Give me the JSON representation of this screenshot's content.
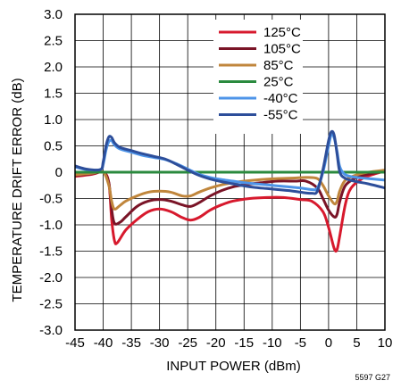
{
  "chart_data": {
    "type": "line",
    "title": "",
    "xlabel": "INPUT POWER (dBm)",
    "ylabel": "TEMPERATURE DRIFT ERROR (dB)",
    "xlim": [
      -45,
      10
    ],
    "ylim": [
      -3.0,
      3.0
    ],
    "xticks": [
      -45,
      -40,
      -35,
      -30,
      -25,
      -20,
      -15,
      -10,
      -5,
      0,
      5,
      10
    ],
    "yticks": [
      3.0,
      2.5,
      2.0,
      1.5,
      1.0,
      0.5,
      0,
      -0.5,
      -1.0,
      -1.5,
      -2.0,
      -2.5,
      -3.0
    ],
    "xtick_labels": [
      "-45",
      "-40",
      "-35",
      "-30",
      "-25",
      "-20",
      "-15",
      "-10",
      "-5",
      "0",
      "5",
      "10"
    ],
    "ytick_labels": [
      "3.0",
      "2.5",
      "2.0",
      "1.5",
      "1.0",
      "0.5",
      "0",
      "-0.5",
      "-1.0",
      "-1.5",
      "-2.0",
      "-2.5",
      "-3.0"
    ],
    "grid": true,
    "legend_position": "top-right",
    "figure_id": "5597 G27",
    "series": [
      {
        "name": "125°C",
        "color": "#d7192d",
        "points": [
          [
            -45,
            -0.08
          ],
          [
            -42,
            -0.04
          ],
          [
            -40,
            0
          ],
          [
            -39,
            -0.2
          ],
          [
            -38.5,
            -0.9
          ],
          [
            -38,
            -1.3
          ],
          [
            -37.5,
            -1.34
          ],
          [
            -36,
            -1.1
          ],
          [
            -34,
            -0.9
          ],
          [
            -32,
            -0.75
          ],
          [
            -30,
            -0.7
          ],
          [
            -28,
            -0.75
          ],
          [
            -26,
            -0.86
          ],
          [
            -24.5,
            -0.91
          ],
          [
            -23,
            -0.86
          ],
          [
            -21,
            -0.72
          ],
          [
            -19,
            -0.62
          ],
          [
            -17,
            -0.55
          ],
          [
            -14,
            -0.5
          ],
          [
            -11,
            -0.48
          ],
          [
            -8,
            -0.48
          ],
          [
            -5,
            -0.52
          ],
          [
            -3,
            -0.55
          ],
          [
            -1,
            -0.75
          ],
          [
            0,
            -1.05
          ],
          [
            1,
            -1.45
          ],
          [
            1.5,
            -1.47
          ],
          [
            2,
            -1.2
          ],
          [
            3,
            -0.6
          ],
          [
            4,
            -0.3
          ],
          [
            6,
            -0.12
          ],
          [
            8,
            -0.04
          ],
          [
            10,
            0.02
          ]
        ]
      },
      {
        "name": "105°C",
        "color": "#7a1427",
        "points": [
          [
            -45,
            -0.06
          ],
          [
            -42,
            -0.03
          ],
          [
            -40,
            0
          ],
          [
            -39,
            -0.2
          ],
          [
            -38.5,
            -0.7
          ],
          [
            -38,
            -0.97
          ],
          [
            -37,
            -0.95
          ],
          [
            -36,
            -0.85
          ],
          [
            -34,
            -0.65
          ],
          [
            -32,
            -0.55
          ],
          [
            -30,
            -0.52
          ],
          [
            -28,
            -0.55
          ],
          [
            -26,
            -0.62
          ],
          [
            -24.5,
            -0.65
          ],
          [
            -23,
            -0.58
          ],
          [
            -21,
            -0.45
          ],
          [
            -19,
            -0.35
          ],
          [
            -17,
            -0.28
          ],
          [
            -15,
            -0.24
          ],
          [
            -12,
            -0.2
          ],
          [
            -9,
            -0.17
          ],
          [
            -6,
            -0.17
          ],
          [
            -4,
            -0.17
          ],
          [
            -2,
            -0.3
          ],
          [
            -1,
            -0.5
          ],
          [
            0,
            -0.72
          ],
          [
            1,
            -0.85
          ],
          [
            1.5,
            -0.8
          ],
          [
            2,
            -0.55
          ],
          [
            3,
            -0.25
          ],
          [
            5,
            -0.1
          ],
          [
            7,
            -0.04
          ],
          [
            10,
            0.02
          ]
        ]
      },
      {
        "name": "85°C",
        "color": "#c0863c",
        "points": [
          [
            -45,
            -0.05
          ],
          [
            -42,
            -0.02
          ],
          [
            -40,
            0
          ],
          [
            -39,
            -0.25
          ],
          [
            -38.5,
            -0.55
          ],
          [
            -38,
            -0.7
          ],
          [
            -37,
            -0.63
          ],
          [
            -36,
            -0.55
          ],
          [
            -34,
            -0.45
          ],
          [
            -32,
            -0.38
          ],
          [
            -30,
            -0.36
          ],
          [
            -28,
            -0.38
          ],
          [
            -26,
            -0.45
          ],
          [
            -24.5,
            -0.45
          ],
          [
            -23,
            -0.38
          ],
          [
            -21,
            -0.3
          ],
          [
            -19,
            -0.24
          ],
          [
            -17,
            -0.2
          ],
          [
            -15,
            -0.17
          ],
          [
            -12,
            -0.14
          ],
          [
            -9,
            -0.12
          ],
          [
            -6,
            -0.11
          ],
          [
            -4,
            -0.1
          ],
          [
            -2,
            -0.12
          ],
          [
            -1,
            -0.25
          ],
          [
            0,
            -0.45
          ],
          [
            1,
            -0.6
          ],
          [
            1.5,
            -0.55
          ],
          [
            2,
            -0.35
          ],
          [
            3,
            -0.15
          ],
          [
            5,
            -0.05
          ],
          [
            7,
            0
          ],
          [
            10,
            0.04
          ]
        ]
      },
      {
        "name": "25°C",
        "color": "#2a8a3e",
        "points": [
          [
            -45,
            0
          ],
          [
            -40,
            0
          ],
          [
            -30,
            0
          ],
          [
            -20,
            0
          ],
          [
            -10,
            0
          ],
          [
            0,
            0
          ],
          [
            10,
            0
          ]
        ]
      },
      {
        "name": "-40°C",
        "color": "#4d94e8",
        "points": [
          [
            -45,
            0.1
          ],
          [
            -43,
            0.05
          ],
          [
            -40.5,
            0.05
          ],
          [
            -40,
            0.15
          ],
          [
            -39.5,
            0.42
          ],
          [
            -39,
            0.58
          ],
          [
            -38.5,
            0.6
          ],
          [
            -38,
            0.52
          ],
          [
            -37,
            0.44
          ],
          [
            -35,
            0.38
          ],
          [
            -33,
            0.32
          ],
          [
            -31,
            0.28
          ],
          [
            -29,
            0.24
          ],
          [
            -27,
            0.16
          ],
          [
            -25,
            0.06
          ],
          [
            -23,
            -0.04
          ],
          [
            -21,
            -0.1
          ],
          [
            -19,
            -0.14
          ],
          [
            -17,
            -0.17
          ],
          [
            -15,
            -0.2
          ],
          [
            -13,
            -0.22
          ],
          [
            -11,
            -0.24
          ],
          [
            -9,
            -0.26
          ],
          [
            -7,
            -0.28
          ],
          [
            -5,
            -0.3
          ],
          [
            -3,
            -0.33
          ],
          [
            -2,
            -0.3
          ],
          [
            -1,
            0.0
          ],
          [
            0,
            0.5
          ],
          [
            0.5,
            0.72
          ],
          [
            1,
            0.65
          ],
          [
            1.5,
            0.4
          ],
          [
            2,
            0.1
          ],
          [
            3,
            -0.05
          ],
          [
            5,
            -0.1
          ],
          [
            7,
            -0.12
          ],
          [
            10,
            -0.15
          ]
        ]
      },
      {
        "name": "-55°C",
        "color": "#2d4e9a",
        "points": [
          [
            -45,
            0.12
          ],
          [
            -43,
            0.06
          ],
          [
            -40.5,
            0.05
          ],
          [
            -40,
            0.2
          ],
          [
            -39.5,
            0.5
          ],
          [
            -39,
            0.67
          ],
          [
            -38.5,
            0.66
          ],
          [
            -38,
            0.56
          ],
          [
            -37,
            0.47
          ],
          [
            -35,
            0.41
          ],
          [
            -33,
            0.35
          ],
          [
            -31,
            0.3
          ],
          [
            -29,
            0.25
          ],
          [
            -27,
            0.15
          ],
          [
            -25,
            0.04
          ],
          [
            -23,
            -0.06
          ],
          [
            -21,
            -0.13
          ],
          [
            -19,
            -0.18
          ],
          [
            -17,
            -0.22
          ],
          [
            -15,
            -0.26
          ],
          [
            -13,
            -0.29
          ],
          [
            -11,
            -0.31
          ],
          [
            -9,
            -0.33
          ],
          [
            -7,
            -0.35
          ],
          [
            -5,
            -0.38
          ],
          [
            -3,
            -0.4
          ],
          [
            -2,
            -0.36
          ],
          [
            -1,
            0.05
          ],
          [
            0,
            0.6
          ],
          [
            0.5,
            0.77
          ],
          [
            1,
            0.7
          ],
          [
            1.5,
            0.35
          ],
          [
            2,
            0.0
          ],
          [
            3,
            -0.12
          ],
          [
            5,
            -0.18
          ],
          [
            7,
            -0.22
          ],
          [
            10,
            -0.3
          ]
        ]
      }
    ]
  }
}
